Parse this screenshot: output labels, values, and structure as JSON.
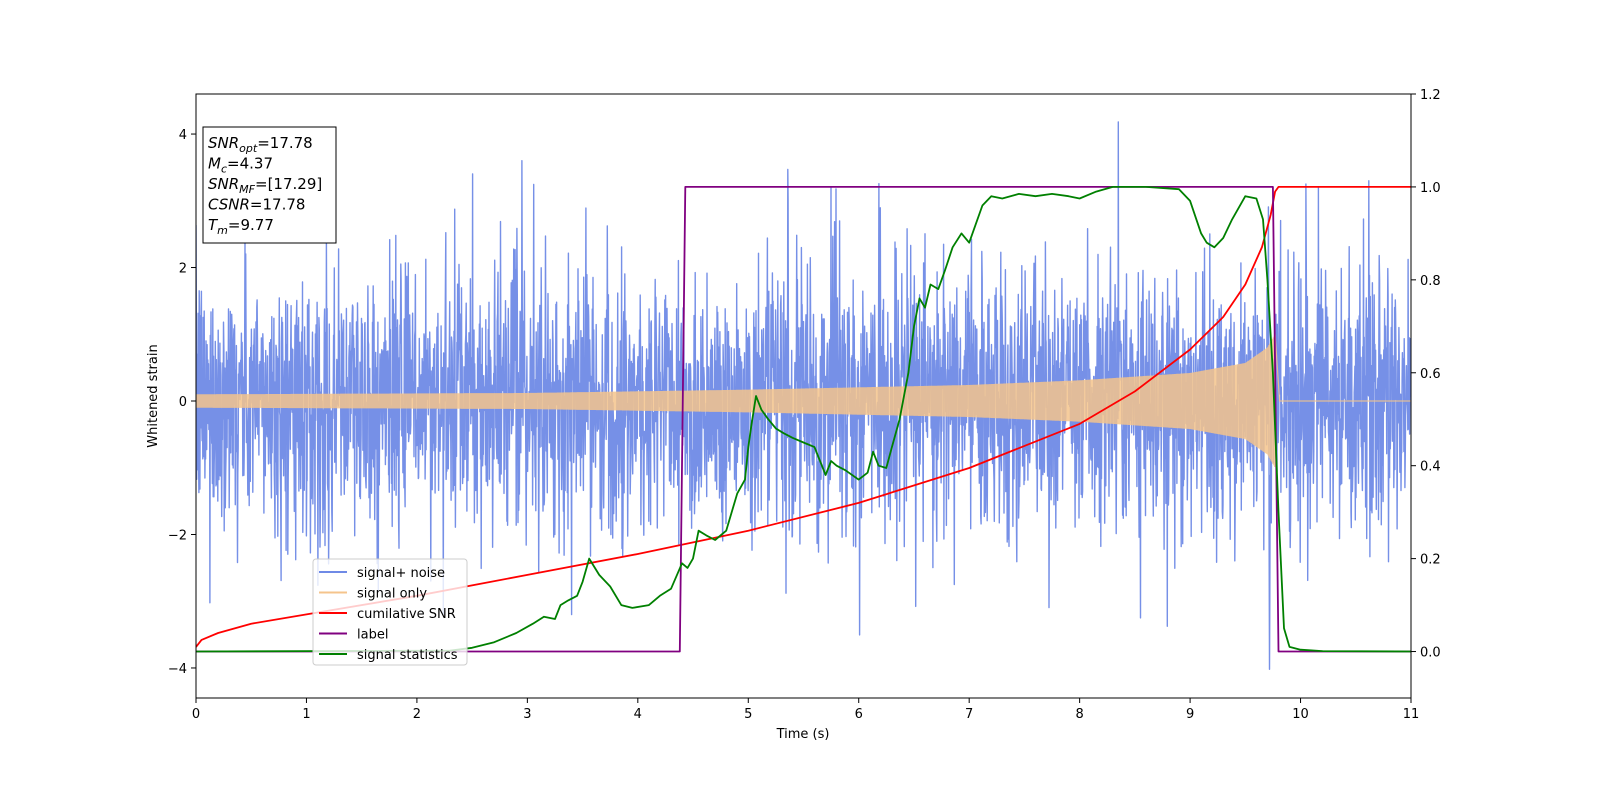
{
  "chart_data": {
    "type": "line",
    "xlabel": "Time (s)",
    "ylabel": "Whitened strain",
    "xlim": [
      0,
      11
    ],
    "ylim_left": [
      -4.45,
      4.6
    ],
    "ylim_right": [
      -0.1,
      1.2
    ],
    "x_ticks": [
      0,
      1,
      2,
      3,
      4,
      5,
      6,
      7,
      8,
      9,
      10,
      11
    ],
    "y_left_ticks": [
      -4,
      -2,
      0,
      2,
      4
    ],
    "y_right_ticks": [
      0.0,
      0.2,
      0.4,
      0.6,
      0.8,
      1.0,
      1.2
    ],
    "legend_position": "lower-left",
    "grid": false,
    "series": [
      {
        "name": "signal+ noise",
        "axis": "left",
        "color": "#6f8ae6",
        "kind": "noise",
        "noise_sigma": 0.95,
        "noise_extremes": [
          [
            2.95,
            3.6
          ],
          [
            8.35,
            4.18
          ],
          [
            9.72,
            -4.02
          ],
          [
            3.4,
            -3.2
          ],
          [
            8.55,
            -3.25
          ],
          [
            5.75,
            3.2
          ],
          [
            10.05,
            3.25
          ]
        ]
      },
      {
        "name": "signal only",
        "axis": "left",
        "color": "#f5c48c",
        "kind": "chirp",
        "chirp_end": 9.77,
        "envelope": [
          [
            0,
            0.1
          ],
          [
            3,
            0.12
          ],
          [
            5,
            0.17
          ],
          [
            7,
            0.24
          ],
          [
            8,
            0.31
          ],
          [
            9,
            0.42
          ],
          [
            9.5,
            0.57
          ],
          [
            9.7,
            0.8
          ],
          [
            9.77,
            1.0
          ]
        ]
      },
      {
        "name": "cumilative SNR",
        "axis": "right",
        "color": "#ff0000",
        "x": [
          0,
          0.05,
          0.2,
          0.5,
          1,
          2,
          3,
          4,
          5,
          6,
          7,
          8,
          8.5,
          9,
          9.3,
          9.5,
          9.65,
          9.73,
          9.77,
          9.8,
          11
        ],
        "y": [
          0.01,
          0.025,
          0.04,
          0.06,
          0.08,
          0.12,
          0.165,
          0.21,
          0.26,
          0.32,
          0.395,
          0.49,
          0.56,
          0.65,
          0.72,
          0.79,
          0.87,
          0.94,
          0.99,
          1.0,
          1.0
        ]
      },
      {
        "name": "label",
        "axis": "right",
        "color": "#800080",
        "x": [
          0,
          4.38,
          4.43,
          9.75,
          9.8,
          11
        ],
        "y": [
          0,
          0,
          1,
          1,
          0,
          0
        ]
      },
      {
        "name": "signal statistics",
        "axis": "right",
        "color": "#008000",
        "x": [
          0,
          2.3,
          2.5,
          2.7,
          2.9,
          3.05,
          3.15,
          3.25,
          3.3,
          3.37,
          3.45,
          3.5,
          3.56,
          3.65,
          3.75,
          3.85,
          3.95,
          4.1,
          4.2,
          4.3,
          4.4,
          4.45,
          4.5,
          4.55,
          4.62,
          4.7,
          4.8,
          4.9,
          4.97,
          5.0,
          5.03,
          5.07,
          5.12,
          5.18,
          5.25,
          5.32,
          5.4,
          5.5,
          5.6,
          5.7,
          5.75,
          5.8,
          5.88,
          6.0,
          6.08,
          6.13,
          6.18,
          6.25,
          6.3,
          6.37,
          6.45,
          6.5,
          6.55,
          6.6,
          6.65,
          6.72,
          6.78,
          6.85,
          6.93,
          7.0,
          7.06,
          7.12,
          7.2,
          7.3,
          7.45,
          7.6,
          7.75,
          7.9,
          8.0,
          8.15,
          8.3,
          8.6,
          8.9,
          9.0,
          9.1,
          9.15,
          9.22,
          9.3,
          9.38,
          9.5,
          9.6,
          9.66,
          9.7,
          9.75,
          9.8,
          9.85,
          9.9,
          10.0,
          10.2,
          11
        ],
        "y": [
          0,
          0.002,
          0.008,
          0.02,
          0.04,
          0.06,
          0.075,
          0.07,
          0.1,
          0.11,
          0.12,
          0.15,
          0.2,
          0.165,
          0.14,
          0.1,
          0.094,
          0.1,
          0.12,
          0.135,
          0.19,
          0.18,
          0.2,
          0.26,
          0.25,
          0.24,
          0.26,
          0.34,
          0.37,
          0.44,
          0.49,
          0.55,
          0.52,
          0.5,
          0.48,
          0.47,
          0.46,
          0.45,
          0.44,
          0.38,
          0.41,
          0.4,
          0.39,
          0.37,
          0.385,
          0.43,
          0.4,
          0.395,
          0.44,
          0.5,
          0.6,
          0.7,
          0.76,
          0.74,
          0.79,
          0.78,
          0.82,
          0.87,
          0.9,
          0.88,
          0.92,
          0.96,
          0.98,
          0.975,
          0.985,
          0.98,
          0.985,
          0.98,
          0.975,
          0.99,
          1.0,
          1.0,
          0.995,
          0.97,
          0.9,
          0.88,
          0.87,
          0.89,
          0.93,
          0.98,
          0.975,
          0.93,
          0.8,
          0.6,
          0.3,
          0.05,
          0.01,
          0.004,
          0.001,
          0.0
        ]
      }
    ],
    "annotation": {
      "lines": [
        {
          "sym": "SNR",
          "sub": "opt",
          "value": "=17.78"
        },
        {
          "sym": "M",
          "sub": "c",
          "value": "=4.37"
        },
        {
          "sym": "SNR",
          "sub": "MF",
          "value": "=[17.29]"
        },
        {
          "sym": "CSNR",
          "sub": "",
          "value": "=17.78"
        },
        {
          "sym": "T",
          "sub": "m",
          "value": "=9.77"
        }
      ]
    }
  }
}
